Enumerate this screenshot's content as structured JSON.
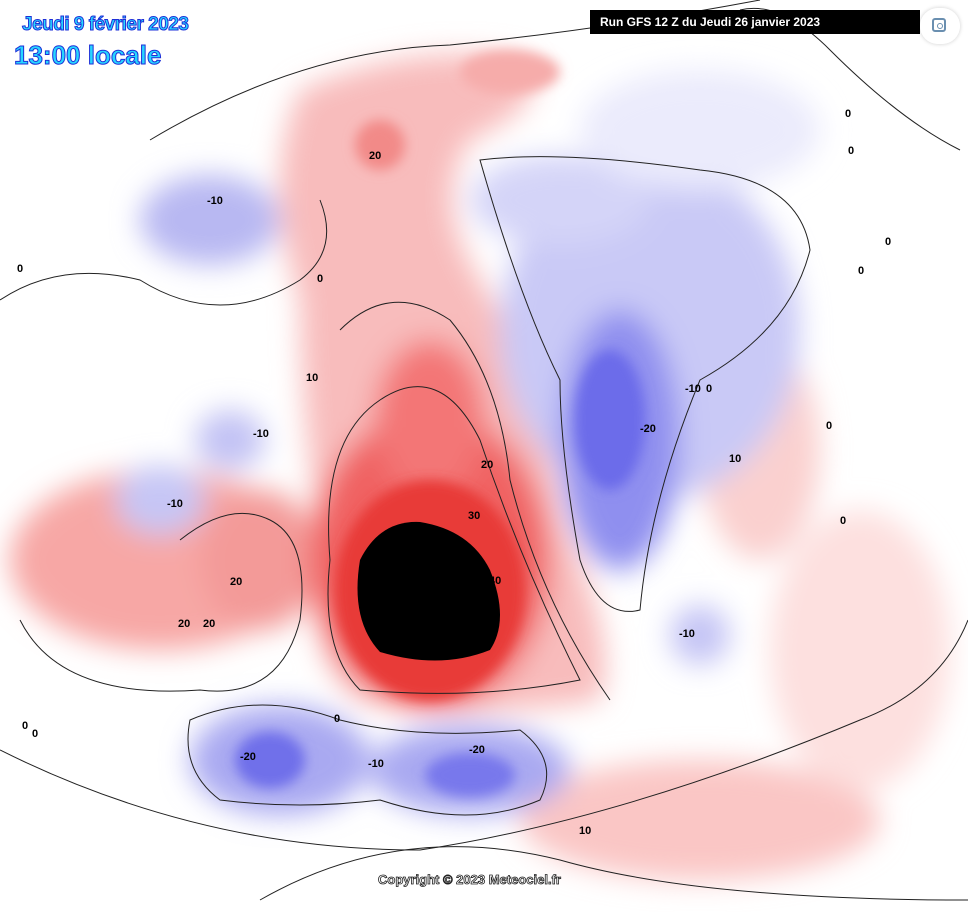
{
  "header": {
    "date": "Jeudi 9 février 2023",
    "time": "13:00 locale",
    "run": "Run GFS 12 Z du Jeudi 26 janvier 2023"
  },
  "footer": {
    "copyright": "Copyright © 2023 Meteociel.fr"
  },
  "colors": {
    "warm": "#e8302e",
    "cold": "#5a5ae8",
    "extreme": "#000000",
    "title": "#27d5ff"
  },
  "contour_labels": [
    "-10",
    "20",
    "0",
    "10",
    "-10",
    "-10",
    "20",
    "20",
    "20",
    "20",
    "30",
    "40",
    "-10",
    "0",
    "-20",
    "10",
    "-10",
    "0",
    "-20",
    "-10",
    "-20",
    "10",
    "0",
    "0",
    "0",
    "0",
    "0",
    "0",
    "0",
    "0",
    "0"
  ],
  "icons": {
    "lens": "google-lens-icon"
  }
}
